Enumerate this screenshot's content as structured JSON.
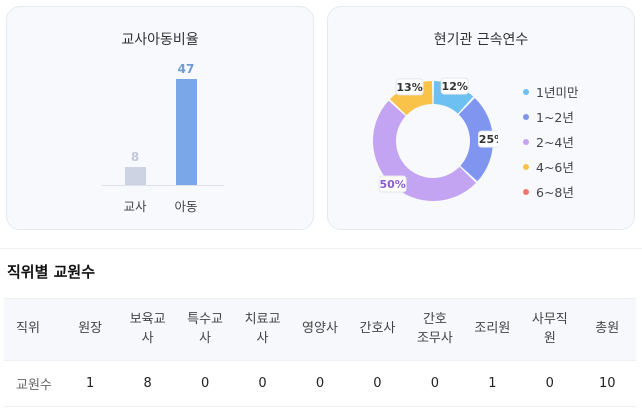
{
  "cards": {
    "teacher_child_ratio": {
      "title": "교사아동비율",
      "chart_data": {
        "type": "bar",
        "categories": [
          "교사",
          "아동"
        ],
        "values": [
          8,
          47
        ],
        "colors": [
          "#cdd3e2",
          "#7aa7e8"
        ],
        "value_colors": [
          "#c2c8d6",
          "#6e9bd8"
        ]
      }
    },
    "tenure": {
      "title": "현기관 근속연수",
      "chart_data": {
        "type": "pie",
        "categories": [
          "1년미만",
          "1~2년",
          "2~4년",
          "4~6년",
          "6~8년"
        ],
        "values": [
          12,
          25,
          50,
          13,
          0
        ],
        "labels": [
          "12%",
          "25%",
          "50%",
          "13%",
          ""
        ],
        "colors": [
          "#6cc1f2",
          "#7f95ef",
          "#c3a4f2",
          "#f9c34a",
          "#f2776b"
        ],
        "label_colors": [
          "#333333",
          "#333333",
          "#8a5cd0",
          "#333333",
          "#333333"
        ]
      }
    }
  },
  "staff_table": {
    "title": "직위별 교원수",
    "headers": [
      "직위",
      "원장",
      "보육교\n사",
      "특수교\n사",
      "치료교\n사",
      "영양사",
      "간호사",
      "간호\n조무사",
      "조리원",
      "사무직\n원",
      "총원"
    ],
    "rows": [
      [
        "교원수",
        "1",
        "8",
        "0",
        "0",
        "0",
        "0",
        "0",
        "1",
        "0",
        "10"
      ]
    ]
  }
}
